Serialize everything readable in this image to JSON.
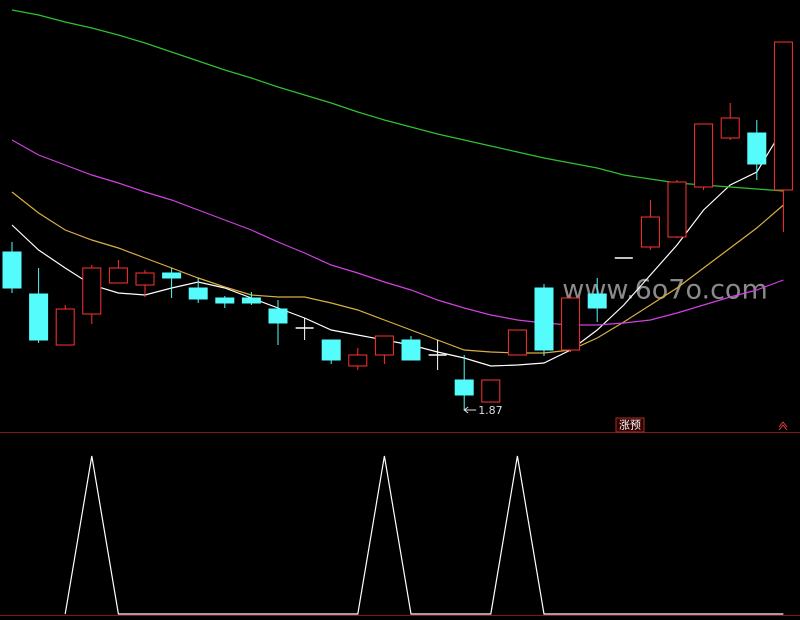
{
  "chart_data": [
    {
      "type": "candlestick",
      "ylim": [
        1.782,
        3.51
      ],
      "up_color": "#ff3232",
      "down_color": "#54fcfc",
      "flat_color": "#ffffff",
      "open": [
        2.502,
        2.334,
        2.13,
        2.254,
        2.378,
        2.37,
        2.418,
        2.358,
        2.318,
        2.318,
        2.274,
        2.198,
        2.15,
        2.046,
        2.09,
        2.15,
        2.09,
        1.99,
        1.902,
        2.09,
        2.358,
        2.11,
        2.334,
        2.478,
        2.522,
        2.562,
        2.762,
        2.958,
        2.978,
        2.75
      ],
      "high": [
        2.542,
        2.438,
        2.29,
        2.45,
        2.47,
        2.43,
        2.438,
        2.398,
        2.326,
        2.342,
        2.31,
        2.238,
        2.15,
        2.118,
        2.166,
        2.166,
        2.15,
        2.09,
        1.99,
        2.19,
        2.374,
        2.326,
        2.398,
        2.478,
        2.71,
        2.79,
        3.014,
        3.098,
        3.03,
        3.342
      ],
      "low": [
        2.338,
        2.138,
        2.13,
        2.214,
        2.378,
        2.322,
        2.318,
        2.298,
        2.278,
        2.29,
        2.13,
        2.15,
        2.054,
        2.03,
        2.054,
        2.07,
        2.03,
        1.87,
        1.902,
        2.09,
        2.086,
        2.102,
        2.222,
        2.478,
        2.51,
        2.558,
        2.75,
        2.95,
        2.79,
        2.582
      ],
      "close": [
        2.358,
        2.15,
        2.274,
        2.438,
        2.438,
        2.418,
        2.398,
        2.314,
        2.298,
        2.298,
        2.218,
        2.198,
        2.07,
        2.09,
        2.166,
        2.07,
        2.09,
        1.93,
        1.99,
        2.19,
        2.11,
        2.318,
        2.278,
        2.478,
        2.642,
        2.782,
        3.014,
        3.038,
        2.854,
        3.342
      ],
      "series": [
        {
          "color": "#ffffff",
          "values": [
            2.61,
            2.51,
            2.438,
            2.37,
            2.338,
            2.33,
            2.358,
            2.382,
            2.358,
            2.318,
            2.278,
            2.238,
            2.19,
            2.17,
            2.15,
            2.13,
            2.102,
            2.078,
            2.046,
            2.05,
            2.058,
            2.11,
            2.19,
            2.29,
            2.41,
            2.53,
            2.67,
            2.77,
            2.822,
            2.998
          ]
        },
        {
          "color": "#d8b040",
          "values": [
            2.742,
            2.658,
            2.59,
            2.55,
            2.518,
            2.478,
            2.438,
            2.398,
            2.362,
            2.33,
            2.322,
            2.322,
            2.298,
            2.27,
            2.23,
            2.19,
            2.15,
            2.11,
            2.102,
            2.098,
            2.098,
            2.11,
            2.158,
            2.222,
            2.29,
            2.358,
            2.438,
            2.518,
            2.598,
            2.69
          ]
        },
        {
          "color": "#d040e0",
          "values": [
            2.95,
            2.89,
            2.85,
            2.81,
            2.778,
            2.742,
            2.71,
            2.67,
            2.63,
            2.59,
            2.542,
            2.498,
            2.45,
            2.418,
            2.382,
            2.35,
            2.31,
            2.278,
            2.25,
            2.23,
            2.218,
            2.21,
            2.21,
            2.218,
            2.23,
            2.258,
            2.29,
            2.322,
            2.35,
            2.39
          ]
        },
        {
          "color": "#30c030",
          "values": [
            3.47,
            3.45,
            3.422,
            3.398,
            3.37,
            3.338,
            3.302,
            3.266,
            3.23,
            3.198,
            3.162,
            3.13,
            3.098,
            3.062,
            3.03,
            3.002,
            2.974,
            2.95,
            2.926,
            2.902,
            2.878,
            2.858,
            2.838,
            2.81,
            2.794,
            2.778,
            2.77,
            2.762,
            2.754,
            2.746
          ]
        }
      ],
      "annotation": {
        "index": 17,
        "value": 1.87
      },
      "watermark": "www.6o7o.com",
      "signal_label": "涨预"
    },
    {
      "type": "line",
      "ylim": [
        0,
        1
      ],
      "color": "#ffffff",
      "values": [
        null,
        null,
        0,
        1,
        0,
        0,
        0,
        0,
        0,
        0,
        0,
        0,
        0,
        0,
        1,
        0,
        0,
        0,
        0,
        1,
        0,
        0,
        0,
        0,
        0,
        0,
        0,
        0,
        0,
        0
      ]
    }
  ]
}
